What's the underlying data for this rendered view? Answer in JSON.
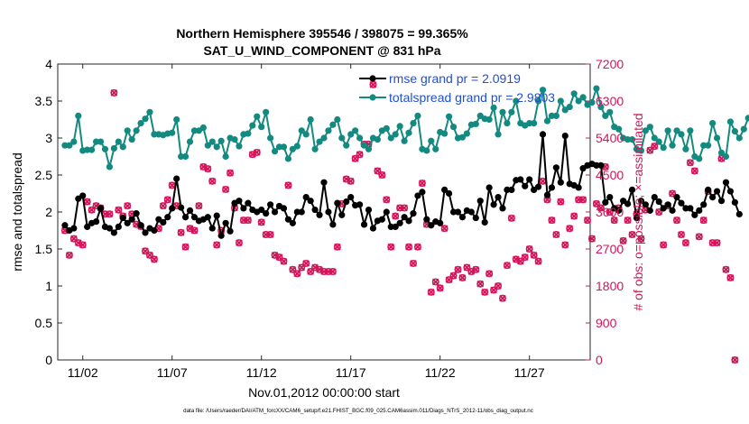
{
  "chart_data": {
    "type": "line",
    "title": "Northern Hemisphere 395546 / 398075 = 99.365%",
    "subtitle": "SAT_U_WIND_COMPONENT @ 831 hPa",
    "xlabel": "Nov.01,2012 00:00:00 start",
    "ylabel_left": "rmse and totalspread",
    "ylabel_right": "# of obs: o=possible; ×=assimilated",
    "footnote": "data file: /Users/raeder/DAI/ATM_forcXX/CAM6_setup/f.e21.FHIST_BGC.f09_025.CAM6assim.011/Diags_NTrS_2012-11/obs_diag_output.nc",
    "xlim": [
      0.6,
      30.4
    ],
    "ylim_left": [
      0,
      4
    ],
    "ylim_right": [
      0,
      7200
    ],
    "x_ticks": [
      {
        "value": 2,
        "label": "11/02"
      },
      {
        "value": 7,
        "label": "11/07"
      },
      {
        "value": 12,
        "label": "11/12"
      },
      {
        "value": 17,
        "label": "11/17"
      },
      {
        "value": 22,
        "label": "11/22"
      },
      {
        "value": 27,
        "label": "11/27"
      }
    ],
    "y_ticks_left": [
      "0",
      "0.5",
      "1",
      "1.5",
      "2",
      "2.5",
      "3",
      "3.5",
      "4"
    ],
    "y_ticks_right": [
      "0",
      "900",
      "1800",
      "2700",
      "3600",
      "4500",
      "5400",
      "6300",
      "7200"
    ],
    "grid": false,
    "legend_placement": "top-right",
    "colors": {
      "rmse": "#000000",
      "totalspread": "#138a80",
      "obs": "#d4145a",
      "legend_text": "#1f4fd6"
    },
    "x_step": 0.25,
    "series": [
      {
        "name": "rmse grand pr = 2.0919",
        "axis": "left",
        "style": "line-filled-circles",
        "values": [
          1.82,
          1.75,
          1.78,
          2.18,
          2.22,
          1.8,
          1.85,
          1.87,
          2.05,
          1.8,
          1.78,
          1.72,
          1.8,
          1.92,
          1.85,
          1.9,
          1.98,
          1.82,
          1.72,
          1.78,
          1.75,
          1.9,
          1.86,
          1.93,
          2.05,
          2.45,
          2.06,
          1.93,
          2.02,
          1.93,
          1.88,
          1.9,
          1.93,
          1.78,
          1.95,
          1.68,
          1.85,
          1.74,
          2.12,
          2.15,
          2.05,
          2.12,
          2.03,
          2.0,
          2.03,
          1.98,
          2.1,
          2.0,
          2.08,
          2.05,
          1.9,
          1.85,
          2.0,
          2.0,
          2.2,
          2.15,
          2.03,
          1.96,
          2.4,
          2.0,
          1.83,
          2.12,
          1.96,
          2.14,
          2.2,
          2.09,
          2.1,
          1.83,
          2.03,
          1.78,
          1.88,
          1.9,
          2.0,
          1.8,
          1.8,
          1.85,
          1.93,
          1.88,
          1.98,
          2.22,
          2.27,
          1.9,
          1.82,
          1.87,
          1.85,
          2.3,
          2.25,
          2.0,
          2.0,
          1.93,
          2.02,
          2.0,
          1.92,
          2.15,
          1.86,
          2.33,
          2.1,
          2.2,
          2.05,
          2.3,
          2.3,
          2.43,
          2.44,
          2.35,
          2.44,
          2.3,
          2.34,
          3.05,
          2.23,
          2.33,
          2.6,
          2.4,
          3.03,
          2.38,
          2.36,
          2.33,
          2.59,
          2.63,
          2.65,
          2.63,
          2.63,
          2.13,
          2.2,
          2.05,
          2.02,
          2.15,
          2.11,
          2.3,
          1.92,
          2.15,
          2.1,
          2.02,
          2.2,
          2.14,
          2.05,
          2.1,
          2.02,
          2.2,
          2.12,
          2.05,
          2.05,
          1.96,
          2.02,
          2.1,
          2.3,
          2.2,
          2.28,
          2.15,
          2.4,
          2.28,
          2.13,
          1.97
        ]
      },
      {
        "name": "totalspread grand pr = 2.9803",
        "axis": "left",
        "style": "line-filled-circles",
        "values": [
          2.9,
          2.9,
          2.95,
          3.3,
          2.83,
          2.84,
          2.84,
          2.95,
          2.95,
          2.85,
          2.61,
          2.86,
          2.95,
          2.88,
          3.1,
          2.98,
          3.1,
          3.2,
          3.26,
          3.35,
          3.05,
          3.05,
          3.04,
          3.06,
          3.07,
          3.25,
          2.75,
          2.75,
          2.95,
          3.1,
          3.1,
          3.14,
          2.9,
          2.95,
          2.88,
          2.96,
          2.75,
          3.0,
          2.98,
          2.89,
          3.05,
          3.06,
          3.17,
          3.29,
          3.15,
          3.35,
          3.0,
          2.82,
          2.88,
          2.88,
          2.72,
          2.85,
          2.89,
          3.1,
          3.05,
          3.25,
          2.85,
          2.95,
          3.0,
          3.1,
          3.18,
          3.25,
          3.0,
          2.9,
          3.05,
          3.1,
          3.0,
          2.9,
          2.85,
          3.0,
          2.98,
          3.1,
          3.13,
          3.0,
          3.05,
          3.16,
          2.96,
          3.07,
          3.2,
          3.3,
          2.85,
          2.83,
          2.96,
          2.85,
          3.08,
          3.06,
          3.29,
          3.15,
          3.0,
          3.01,
          3.06,
          3.18,
          3.19,
          3.3,
          3.26,
          3.25,
          3.41,
          3.05,
          3.35,
          3.2,
          3.35,
          3.5,
          3.2,
          3.17,
          3.2,
          3.2,
          3.5,
          3.65,
          3.23,
          3.3,
          3.3,
          3.5,
          3.38,
          3.42,
          3.6,
          3.5,
          3.55,
          3.45,
          3.48,
          3.67,
          3.42,
          3.3,
          3.35,
          3.15,
          3.12,
          3.0,
          2.98,
          2.98,
          2.85,
          2.83,
          3.1,
          3.15,
          3.0,
          2.95,
          2.87,
          3.1,
          2.9,
          3.1,
          3.05,
          2.85,
          3.1,
          2.75,
          2.72,
          2.9,
          2.9,
          3.2,
          3.0,
          2.8,
          2.75,
          3.22,
          3.09,
          3.0,
          3.12,
          3.27
        ]
      },
      {
        "name": "# of obs possible",
        "axis": "right",
        "style": "circle",
        "values": [
          3150,
          2550,
          2950,
          2850,
          2800,
          3850,
          3650,
          3750,
          3700,
          3550,
          3550,
          6500,
          3650,
          3500,
          3750,
          3550,
          3300,
          3250,
          2650,
          2550,
          2450,
          3200,
          3750,
          3900,
          4250,
          3750,
          3100,
          2750,
          3200,
          3150,
          3750,
          4700,
          4650,
          4350,
          2800,
          3150,
          4150,
          4550,
          3700,
          2850,
          3400,
          3400,
          5000,
          5050,
          3350,
          3050,
          3050,
          2550,
          2500,
          2400,
          4250,
          2200,
          2100,
          2250,
          2350,
          2150,
          2250,
          2200,
          2150,
          2150,
          2150,
          2750,
          3800,
          4400,
          4350,
          4900,
          5000,
          5250,
          5250,
          6700,
          4600,
          4500,
          3900,
          2750,
          3500,
          3700,
          3700,
          2750,
          2350,
          2750,
          4300,
          3300,
          1650,
          1900,
          1750,
          3200,
          1950,
          2050,
          2200,
          2000,
          2250,
          2150,
          2200,
          1850,
          1650,
          2100,
          1700,
          1800,
          1500,
          2300,
          3450,
          2450,
          2400,
          2500,
          2700,
          2550,
          2400,
          4350,
          3900,
          3400,
          3050,
          3850,
          2800,
          3200,
          3500,
          3900,
          3900,
          3400,
          2950,
          3800,
          3700,
          4700,
          3600,
          3400,
          3700,
          2900,
          3400,
          3050,
          3550,
          2950,
          3650,
          5100,
          5200,
          3600,
          2800,
          3750,
          4050,
          3400,
          3050,
          2850,
          4800,
          4600,
          3000,
          3400,
          4100,
          2850,
          2850,
          4900,
          2200,
          2000,
          0
        ]
      },
      {
        "name": "# of obs assimilated",
        "axis": "right",
        "style": "cross",
        "values": [
          3150,
          2550,
          2950,
          2850,
          2800,
          3850,
          3650,
          3750,
          3700,
          3550,
          3550,
          6500,
          3650,
          3500,
          3750,
          3550,
          3300,
          3250,
          2650,
          2550,
          2450,
          3200,
          3750,
          3900,
          4250,
          3750,
          3100,
          2750,
          3200,
          3150,
          3750,
          4700,
          4650,
          4350,
          2800,
          3150,
          4150,
          4550,
          3700,
          2850,
          3400,
          3400,
          5000,
          5050,
          3350,
          3050,
          3050,
          2550,
          2500,
          2400,
          4250,
          2200,
          2100,
          2250,
          2350,
          2150,
          2250,
          2200,
          2150,
          2150,
          2150,
          2750,
          3800,
          4400,
          4350,
          4900,
          5000,
          5250,
          5250,
          6700,
          4600,
          4500,
          3900,
          2750,
          3500,
          3700,
          3700,
          2750,
          2350,
          2750,
          4300,
          3300,
          1650,
          1900,
          1750,
          3200,
          1950,
          2050,
          2200,
          2000,
          2250,
          2150,
          2200,
          1850,
          1650,
          2100,
          1700,
          1800,
          1500,
          2300,
          3450,
          2450,
          2400,
          2500,
          2700,
          2550,
          2400,
          4350,
          3900,
          3400,
          3050,
          3850,
          2800,
          3200,
          3500,
          3900,
          3900,
          3400,
          2950,
          3800,
          3700,
          4700,
          3600,
          3400,
          3700,
          2900,
          3400,
          3050,
          3550,
          2950,
          3650,
          5100,
          5200,
          3600,
          2800,
          3750,
          4050,
          3400,
          3050,
          2850,
          4800,
          4600,
          3000,
          3400,
          4100,
          2850,
          2850,
          4900,
          2200,
          2000,
          0
        ]
      }
    ]
  }
}
